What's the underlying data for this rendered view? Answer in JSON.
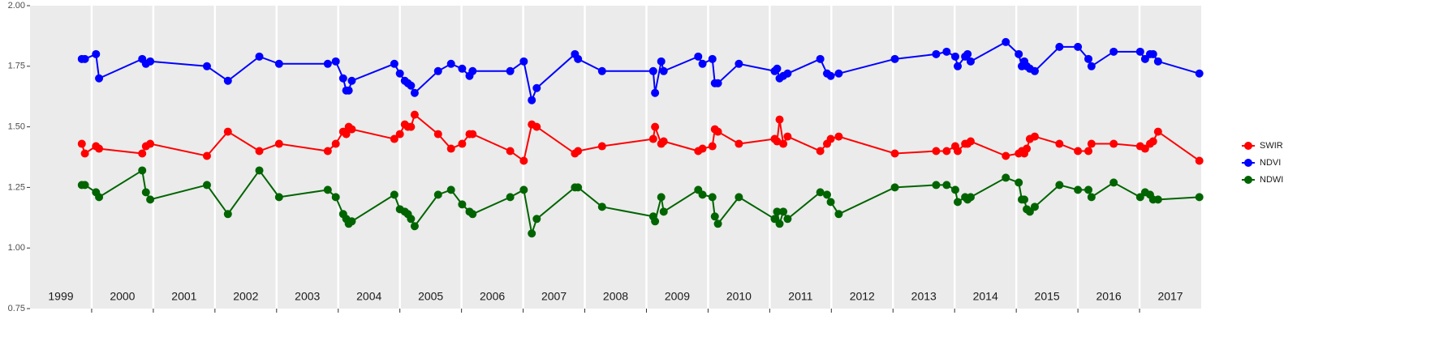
{
  "chart_data": {
    "type": "line",
    "xlim": [
      1999,
      2018
    ],
    "xticks": [
      2000,
      2001,
      2002,
      2003,
      2004,
      2005,
      2006,
      2007,
      2008,
      2009,
      2010,
      2011,
      2012,
      2013,
      2014,
      2015,
      2016,
      2017
    ],
    "year_labels": [
      "1999",
      "2000",
      "2001",
      "2002",
      "2003",
      "2004",
      "2005",
      "2006",
      "2007",
      "2008",
      "2009",
      "2010",
      "2011",
      "2012",
      "2013",
      "2014",
      "2015",
      "2016",
      "2017"
    ],
    "ylim": [
      0.75,
      2.0
    ],
    "yticks": [
      {
        "value": 0.75,
        "label": "0.75"
      },
      {
        "value": 1.0,
        "label": "1.00"
      },
      {
        "value": 1.25,
        "label": "1.25"
      },
      {
        "value": 1.5,
        "label": "1.50"
      },
      {
        "value": 1.75,
        "label": "1.75"
      },
      {
        "value": 2.0,
        "label": "2.00"
      }
    ],
    "grid": "x",
    "legend": "right",
    "x": [
      1999.84,
      1999.89,
      2000.07,
      2000.12,
      2000.82,
      2000.88,
      2000.95,
      2001.87,
      2002.21,
      2002.72,
      2003.04,
      2003.83,
      2003.96,
      2004.08,
      2004.13,
      2004.17,
      2004.22,
      2004.91,
      2005.0,
      2005.08,
      2005.13,
      2005.18,
      2005.24,
      2005.62,
      2005.83,
      2006.01,
      2006.13,
      2006.18,
      2006.79,
      2007.01,
      2007.14,
      2007.22,
      2007.84,
      2007.89,
      2008.28,
      2009.11,
      2009.14,
      2009.24,
      2009.28,
      2009.84,
      2009.91,
      2010.07,
      2010.11,
      2010.16,
      2010.5,
      2011.08,
      2011.12,
      2011.16,
      2011.22,
      2011.29,
      2011.82,
      2011.93,
      2011.99,
      2012.12,
      2013.03,
      2013.7,
      2013.87,
      2014.01,
      2014.05,
      2014.17,
      2014.21,
      2014.26,
      2014.83,
      2015.04,
      2015.09,
      2015.13,
      2015.17,
      2015.22,
      2015.3,
      2015.7,
      2016.0,
      2016.17,
      2016.22,
      2016.58,
      2017.01,
      2017.09,
      2017.17,
      2017.22,
      2017.3,
      2017.97
    ],
    "series": [
      {
        "name": "SWIR",
        "color": "#ff0000",
        "values": [
          1.43,
          1.39,
          1.42,
          1.41,
          1.39,
          1.42,
          1.43,
          1.38,
          1.48,
          1.4,
          1.43,
          1.4,
          1.43,
          1.48,
          1.47,
          1.5,
          1.49,
          1.45,
          1.47,
          1.51,
          1.5,
          1.5,
          1.55,
          1.47,
          1.41,
          1.43,
          1.47,
          1.47,
          1.4,
          1.36,
          1.51,
          1.5,
          1.39,
          1.4,
          1.42,
          1.45,
          1.5,
          1.43,
          1.44,
          1.4,
          1.41,
          1.42,
          1.49,
          1.48,
          1.43,
          1.45,
          1.44,
          1.53,
          1.43,
          1.46,
          1.4,
          1.43,
          1.45,
          1.46,
          1.39,
          1.4,
          1.4,
          1.42,
          1.4,
          1.43,
          1.43,
          1.44,
          1.38,
          1.39,
          1.4,
          1.39,
          1.41,
          1.45,
          1.46,
          1.43,
          1.4,
          1.4,
          1.43,
          1.43,
          1.42,
          1.41,
          1.43,
          1.44,
          1.48,
          1.36
        ]
      },
      {
        "name": "NDVI",
        "color": "#0000ff",
        "values": [
          1.78,
          1.78,
          1.8,
          1.7,
          1.78,
          1.76,
          1.77,
          1.75,
          1.69,
          1.79,
          1.76,
          1.76,
          1.77,
          1.7,
          1.65,
          1.65,
          1.69,
          1.76,
          1.72,
          1.69,
          1.68,
          1.67,
          1.64,
          1.73,
          1.76,
          1.74,
          1.71,
          1.73,
          1.73,
          1.77,
          1.61,
          1.66,
          1.8,
          1.78,
          1.73,
          1.73,
          1.64,
          1.77,
          1.73,
          1.79,
          1.76,
          1.78,
          1.68,
          1.68,
          1.76,
          1.73,
          1.74,
          1.7,
          1.71,
          1.72,
          1.78,
          1.72,
          1.71,
          1.72,
          1.78,
          1.8,
          1.81,
          1.79,
          1.75,
          1.79,
          1.8,
          1.77,
          1.85,
          1.8,
          1.75,
          1.77,
          1.75,
          1.74,
          1.73,
          1.83,
          1.83,
          1.78,
          1.75,
          1.81,
          1.81,
          1.78,
          1.8,
          1.8,
          1.77,
          1.72
        ]
      },
      {
        "name": "NDWI",
        "color": "#006400",
        "values": [
          1.26,
          1.26,
          1.23,
          1.21,
          1.32,
          1.23,
          1.2,
          1.26,
          1.14,
          1.32,
          1.21,
          1.24,
          1.21,
          1.14,
          1.12,
          1.1,
          1.11,
          1.22,
          1.16,
          1.15,
          1.14,
          1.12,
          1.09,
          1.22,
          1.24,
          1.18,
          1.15,
          1.14,
          1.21,
          1.24,
          1.06,
          1.12,
          1.25,
          1.25,
          1.17,
          1.13,
          1.11,
          1.21,
          1.15,
          1.24,
          1.22,
          1.21,
          1.13,
          1.1,
          1.21,
          1.12,
          1.15,
          1.1,
          1.15,
          1.12,
          1.23,
          1.22,
          1.19,
          1.14,
          1.25,
          1.26,
          1.26,
          1.24,
          1.19,
          1.21,
          1.2,
          1.21,
          1.29,
          1.27,
          1.2,
          1.2,
          1.16,
          1.15,
          1.17,
          1.26,
          1.24,
          1.24,
          1.21,
          1.27,
          1.21,
          1.23,
          1.22,
          1.2,
          1.2,
          1.21
        ]
      }
    ]
  }
}
